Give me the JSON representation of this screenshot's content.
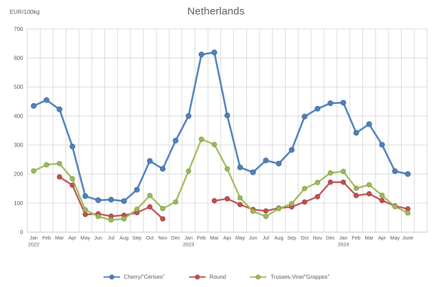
{
  "title": "Netherlands",
  "y_axis_unit": "EUR/100kg",
  "chart_data": {
    "type": "line",
    "title": "Netherlands",
    "ylabel": "EUR/100kg",
    "xlabel": "",
    "ylim": [
      0,
      700
    ],
    "ytick_interval": 100,
    "yticks": [
      0,
      100,
      200,
      300,
      400,
      500,
      600,
      700
    ],
    "grid": true,
    "legend_position": "bottom",
    "categories": [
      "Jan",
      "Feb",
      "Mar",
      "Apr",
      "May",
      "Jun",
      "Jul",
      "Aug",
      "Sep",
      "Oct",
      "Nov",
      "Dec",
      "Jan",
      "Feb",
      "Mar",
      "Apr",
      "May",
      "Jun",
      "Jul",
      "Aug",
      "Sep",
      "Oct",
      "Nov",
      "Dec",
      "Jan",
      "Feb",
      "Mar",
      "Apr",
      "May",
      "June"
    ],
    "year_labels": [
      {
        "index": 0,
        "label": "2022"
      },
      {
        "index": 12,
        "label": "2023"
      },
      {
        "index": 24,
        "label": "2024"
      }
    ],
    "series": [
      {
        "name": "Cherry/\"Cérises\"",
        "color": "#4F81BD",
        "values": [
          435,
          455,
          423,
          295,
          124,
          110,
          112,
          107,
          146,
          245,
          218,
          315,
          400,
          612,
          619,
          402,
          223,
          206,
          247,
          236,
          283,
          398,
          425,
          444,
          446,
          342,
          372,
          301,
          210,
          200
        ]
      },
      {
        "name": "Round",
        "color": "#C0504D",
        "values": [
          null,
          null,
          190,
          162,
          61,
          63,
          55,
          58,
          67,
          87,
          46,
          null,
          null,
          null,
          108,
          115,
          95,
          78,
          73,
          83,
          87,
          104,
          122,
          172,
          172,
          126,
          132,
          109,
          90,
          80
        ]
      },
      {
        "name": "Trusses-Vine/\"Grappes\"",
        "color": "#9BBB59",
        "values": [
          211,
          232,
          236,
          184,
          77,
          54,
          42,
          46,
          79,
          126,
          81,
          104,
          210,
          320,
          302,
          218,
          118,
          72,
          54,
          81,
          98,
          150,
          171,
          204,
          209,
          151,
          163,
          127,
          88,
          66
        ]
      }
    ]
  },
  "colors": {
    "gridline": "#D9D9D9",
    "axis_line": "#C6C6C6",
    "axis_text": "#595959",
    "title_text": "#595959",
    "background": "#FFFFFF"
  }
}
